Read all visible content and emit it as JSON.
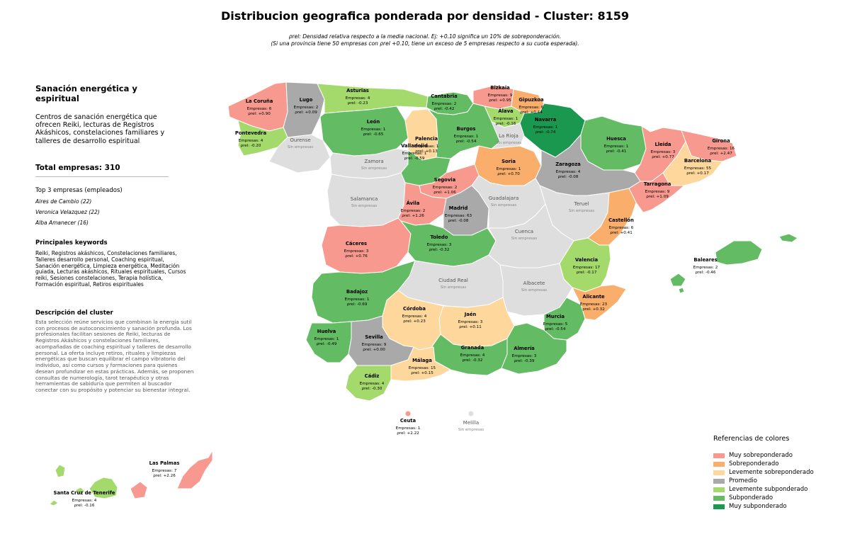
{
  "title": "Distribucion geografica ponderada por densidad - Cluster: 8159",
  "subtitle_line1": "ρrel: Densidad relativa respecto a la media nacional. Ej: +0.10 significa un 10% de sobreponderación.",
  "subtitle_line2": "(Si una provincia tiene 50 empresas con ρrel +0.10, tiene un exceso de 5 empresas respecto a su cuota esperada).",
  "left_panel": {
    "cluster_name": "Sanación energética y espiritual",
    "cluster_description": "Centros de sanación energética que ofrecen Reiki, lecturas de Registros Akáshicos, constelaciones familiares y talleres de desarrollo espiritual",
    "total_label": "Total empresas: 310",
    "top3_title": "Top 3 empresas (empleados)",
    "top3": [
      "Aires de Cambio (22)",
      "Veronica Velazquez (22)",
      "Alba Amanecer (16)"
    ],
    "keywords_title": "Principales keywords",
    "keywords_text": "Reiki, Registros akáshicos, Constelaciones familiares, Talleres desarrollo personal, Coaching espiritual, Sanación energética, Limpieza energética, Meditación guiada, Lecturas akáshicos, Rituales espirituales, Cursos reiki, Sesiones constelaciones, Terapia holística, Formación espiritual, Retiros espirituales",
    "description_title": "Descripción del cluster",
    "description_text": "Esta selección reúne servicios que combinan la energía sutil con procesos de autoconocimiento y sanación profunda. Los profesionales facilitan sesiones de Reiki, lecturas de Registros Akáshicos y constelaciones familiares, acompañadas de coaching espiritual y talleres de desarrollo personal. La oferta incluye retiros, rituales y limpiezas energéticas que buscan equilibrar el campo vibratorio del individuo, así como cursos y formaciones para quienes desean profundizar en estas prácticas. Además, se proponen consultas de numerología, tarot terapéutico y otras herramientas de sabiduría que permiten al buscador conectar con su propósito y potenciar su bienestar integral."
  },
  "legend": {
    "title": "Referencias de colores",
    "items": [
      {
        "label": "Muy sobreponderado",
        "color": "#f7998f"
      },
      {
        "label": "Sobreponderado",
        "color": "#f9ae6b"
      },
      {
        "label": "Levemente sobreponderado",
        "color": "#fdd79b"
      },
      {
        "label": "Promedio",
        "color": "#a9a9a9"
      },
      {
        "label": "Levemente subponderado",
        "color": "#a4d96c"
      },
      {
        "label": "Subponderado",
        "color": "#63bc63"
      },
      {
        "label": "Muy subponderado",
        "color": "#1a9850"
      }
    ]
  },
  "rho_label": "ρrel:",
  "no_data_label": "Sin empresas",
  "provinces": [
    {
      "name": "La Coruña",
      "count": "Empresas: 6",
      "rho": "+0.90",
      "category": "Muy sobreponderado"
    },
    {
      "name": "Lugo",
      "count": "Empresas: 2",
      "rho": "+0.09",
      "category": "Promedio"
    },
    {
      "name": "Asturias",
      "count": "Empresas: 4",
      "rho": "-0.23",
      "category": "Levemente subponderado"
    },
    {
      "name": "Cantabria",
      "count": "Empresas: 2",
      "rho": "-0.42",
      "category": "Subponderado"
    },
    {
      "name": "Bizkaia",
      "count": "Empresas: 9",
      "rho": "+0.95",
      "category": "Muy sobreponderado"
    },
    {
      "name": "Gipuzkoa",
      "count": "Empresas: 6",
      "rho": "+0.44",
      "category": "Sobreponderado"
    },
    {
      "name": "Álava",
      "count": "Empresas: 1",
      "rho": "-0.16",
      "category": "Levemente subponderado"
    },
    {
      "name": "Navarra",
      "count": "Empresas: 1",
      "rho": "-0.74",
      "category": "Muy subponderado"
    },
    {
      "name": "Pontevedra",
      "count": "Empresas: 4",
      "rho": "-0.20",
      "category": "Levemente subponderado"
    },
    {
      "name": "Ourense",
      "count": "",
      "rho": "",
      "category": "Sin empresas"
    },
    {
      "name": "León",
      "count": "Empresas: 1",
      "rho": "-0.65",
      "category": "Subponderado"
    },
    {
      "name": "Palencia",
      "count": "Empresas: 1",
      "rho": "+0.13",
      "category": "Levemente sobreponderado"
    },
    {
      "name": "Burgos",
      "count": "Empresas: 1",
      "rho": "-0.54",
      "category": "Subponderado"
    },
    {
      "name": "La Rioja",
      "count": "",
      "rho": "",
      "category": "Sin empresas"
    },
    {
      "name": "Huesca",
      "count": "Empresas: 1",
      "rho": "-0.41",
      "category": "Subponderado"
    },
    {
      "name": "Lleida",
      "count": "Empresas: 3",
      "rho": "+0.77",
      "category": "Muy sobreponderado"
    },
    {
      "name": "Girona",
      "count": "Empresas: 16",
      "rho": "+2.47",
      "category": "Muy sobreponderado"
    },
    {
      "name": "Barcelona",
      "count": "Empresas: 55",
      "rho": "+0.17",
      "category": "Levemente sobreponderado"
    },
    {
      "name": "Zamora",
      "count": "",
      "rho": "",
      "category": "Sin empresas"
    },
    {
      "name": "Valladolid",
      "count": "Empresas: 1",
      "rho": "-0.59",
      "category": "Subponderado"
    },
    {
      "name": "Soria",
      "count": "Empresas: 1",
      "rho": "+0.70",
      "category": "Sobreponderado"
    },
    {
      "name": "Zaragoza",
      "count": "Empresas: 4",
      "rho": "-0.08",
      "category": "Promedio"
    },
    {
      "name": "Tarragona",
      "count": "Empresas: 9",
      "rho": "+1.09",
      "category": "Muy sobreponderado"
    },
    {
      "name": "Salamanca",
      "count": "",
      "rho": "",
      "category": "Sin empresas"
    },
    {
      "name": "Segovia",
      "count": "Empresas: 2",
      "rho": "+1.06",
      "category": "Muy sobreponderado"
    },
    {
      "name": "Ávila",
      "count": "Empresas: 2",
      "rho": "+1.26",
      "category": "Muy sobreponderado"
    },
    {
      "name": "Madrid",
      "count": "Empresas: 63",
      "rho": "-0.08",
      "category": "Promedio"
    },
    {
      "name": "Guadalajara",
      "count": "",
      "rho": "",
      "category": "Sin empresas"
    },
    {
      "name": "Teruel",
      "count": "",
      "rho": "",
      "category": "Sin empresas"
    },
    {
      "name": "Castellón",
      "count": "Empresas: 6",
      "rho": "+0.41",
      "category": "Sobreponderado"
    },
    {
      "name": "Cáceres",
      "count": "Empresas: 3",
      "rho": "+0.76",
      "category": "Muy sobreponderado"
    },
    {
      "name": "Toledo",
      "count": "Empresas: 3",
      "rho": "-0.32",
      "category": "Subponderado"
    },
    {
      "name": "Cuenca",
      "count": "",
      "rho": "",
      "category": "Sin empresas"
    },
    {
      "name": "Valencia",
      "count": "Empresas: 17",
      "rho": "-0.17",
      "category": "Levemente subponderado"
    },
    {
      "name": "Baleares",
      "count": "Empresas: 2",
      "rho": "-0.46",
      "category": "Subponderado"
    },
    {
      "name": "Badajoz",
      "count": "Empresas: 1",
      "rho": "-0.69",
      "category": "Subponderado"
    },
    {
      "name": "Ciudad Real",
      "count": "",
      "rho": "",
      "category": "Sin empresas"
    },
    {
      "name": "Albacete",
      "count": "",
      "rho": "",
      "category": "Sin empresas"
    },
    {
      "name": "Alicante",
      "count": "Empresas: 23",
      "rho": "+0.32",
      "category": "Sobreponderado"
    },
    {
      "name": "Córdoba",
      "count": "Empresas: 4",
      "rho": "+0.23",
      "category": "Levemente sobreponderado"
    },
    {
      "name": "Jaén",
      "count": "Empresas: 3",
      "rho": "+0.11",
      "category": "Levemente sobreponderado"
    },
    {
      "name": "Murcia",
      "count": "Empresas: 5",
      "rho": "-0.54",
      "category": "Subponderado"
    },
    {
      "name": "Huelva",
      "count": "Empresas: 1",
      "rho": "-0.49",
      "category": "Subponderado"
    },
    {
      "name": "Sevilla",
      "count": "Empresas: 9",
      "rho": "+0.00",
      "category": "Promedio"
    },
    {
      "name": "Granada",
      "count": "Empresas: 4",
      "rho": "-0.32",
      "category": "Subponderado"
    },
    {
      "name": "Almería",
      "count": "Empresas: 3",
      "rho": "-0.39",
      "category": "Subponderado"
    },
    {
      "name": "Málaga",
      "count": "Empresas: 15",
      "rho": "+0.15",
      "category": "Levemente sobreponderado"
    },
    {
      "name": "Cádiz",
      "count": "Empresas: 4",
      "rho": "-0.30",
      "category": "Levemente subponderado"
    },
    {
      "name": "Ceuta",
      "count": "Empresas: 1",
      "rho": "+2.22",
      "category": "Muy sobreponderado"
    },
    {
      "name": "Melilla",
      "count": "",
      "rho": "",
      "category": "Sin empresas"
    },
    {
      "name": "Las Palmas",
      "count": "Empresas: 7",
      "rho": "+2.26",
      "category": "Muy sobreponderado"
    },
    {
      "name": "Santa Cruz de Tenerife",
      "count": "Empresas: 4",
      "rho": "-0.16",
      "category": "Levemente subponderado"
    }
  ]
}
